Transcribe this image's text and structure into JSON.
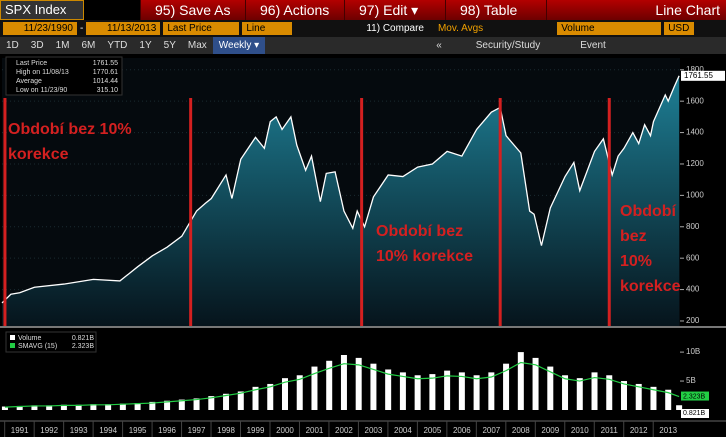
{
  "toolbar": {
    "ticker": "SPX Index",
    "buttons": [
      "95) Save As",
      "96) Actions ▾",
      "97) Edit ▾",
      "98) Table"
    ],
    "view": "Line Chart",
    "start": "11/23/1990",
    "dash": "-",
    "end": "11/13/2013",
    "field": "Last Price",
    "style": "Line",
    "compare": "11) Compare",
    "mavgs": "Mov. Avgs",
    "lower": "Volume",
    "currency": "USD",
    "periods": [
      "1D",
      "3D",
      "1M",
      "6M",
      "YTD",
      "1Y",
      "5Y",
      "Max"
    ],
    "freq": "Weekly ▾",
    "collapse": "«",
    "study": "Security/Study",
    "event": "Event"
  },
  "chart_data": [
    {
      "type": "line",
      "legend": [
        {
          "label": "Last Price",
          "value": "1761.55"
        },
        {
          "label": "High on 11/08/13",
          "value": "1770.61"
        },
        {
          "label": "Average",
          "value": "1014.44"
        },
        {
          "label": "Low on 11/23/90",
          "value": "315.10"
        }
      ],
      "last_label": "1761.55",
      "x": [
        1990.9,
        1991.2,
        1991.5,
        1992,
        1993,
        1994,
        1994.9,
        1995.5,
        1996,
        1996.5,
        1997,
        1997.5,
        1997.8,
        1998,
        1998.5,
        1998.7,
        1999,
        1999.5,
        1999.8,
        2000,
        2000.2,
        2000.4,
        2000.7,
        2000.9,
        2001.2,
        2001.4,
        2001.7,
        2001.9,
        2002.2,
        2002.5,
        2002.8,
        2002.95,
        2003.2,
        2003.5,
        2004,
        2004.5,
        2005,
        2005.5,
        2006,
        2006.5,
        2007,
        2007.5,
        2007.8,
        2008,
        2008.5,
        2008.8,
        2008.95,
        2009.2,
        2009.5,
        2010,
        2010.3,
        2010.5,
        2011,
        2011.3,
        2011.6,
        2011.8,
        2012,
        2012.3,
        2012.5,
        2012.7,
        2012.9,
        2013,
        2013.4,
        2013.5,
        2013.7,
        2013.87
      ],
      "series": [
        {
          "name": "Last Price",
          "color": "#ffffff",
          "values": [
            315,
            370,
            380,
            415,
            435,
            465,
            455,
            545,
            615,
            670,
            740,
            900,
            950,
            980,
            1130,
            980,
            1230,
            1370,
            1300,
            1470,
            1500,
            1420,
            1500,
            1320,
            1160,
            1250,
            960,
            1140,
            1150,
            900,
            790,
            900,
            800,
            990,
            1130,
            1120,
            1180,
            1200,
            1280,
            1250,
            1420,
            1530,
            1560,
            1380,
            1270,
            900,
            880,
            680,
            920,
            1120,
            1210,
            1030,
            1280,
            1360,
            1130,
            1250,
            1300,
            1400,
            1330,
            1450,
            1380,
            1470,
            1640,
            1600,
            1690,
            1761.55
          ]
        }
      ],
      "xlim": [
        1990.9,
        2013.9
      ],
      "ylim": [
        168,
        1875
      ],
      "yticks": [
        200,
        400,
        600,
        800,
        1000,
        1200,
        1400,
        1600,
        1800
      ],
      "markers": {
        "color": "#d42020",
        "x": [
          1991.0,
          1997.3,
          2003.1,
          2007.8,
          2011.5
        ]
      },
      "annotations": [
        {
          "lines": [
            "Období bez 10%",
            "korekce"
          ]
        },
        {
          "lines": [
            "Období bez",
            "10% korekce"
          ]
        },
        {
          "lines": [
            "Období",
            "bez",
            "10%",
            "korekce"
          ]
        }
      ]
    },
    {
      "type": "bar",
      "legend": [
        {
          "label": "Volume",
          "value": "0.821B"
        },
        {
          "label": "SMAVG (15)",
          "value": "2.323B"
        }
      ],
      "end_labels": [
        "2.323B",
        "0.821B"
      ],
      "x": [
        1991.0,
        1991.5,
        1992.0,
        1992.5,
        1993.0,
        1993.5,
        1994.0,
        1994.5,
        1995.0,
        1995.5,
        1996.0,
        1996.5,
        1997.0,
        1997.5,
        1998.0,
        1998.5,
        1999.0,
        1999.5,
        2000.0,
        2000.5,
        2001.0,
        2001.5,
        2002.0,
        2002.5,
        2003.0,
        2003.5,
        2004.0,
        2004.5,
        2005.0,
        2005.5,
        2006.0,
        2006.5,
        2007.0,
        2007.5,
        2008.0,
        2008.5,
        2009.0,
        2009.5,
        2010.0,
        2010.5,
        2011.0,
        2011.5,
        2012.0,
        2012.5,
        2013.0,
        2013.5,
        2013.87
      ],
      "series": [
        {
          "name": "Volume",
          "color": "#ffffff",
          "values": [
            0.6,
            0.7,
            0.8,
            0.8,
            0.9,
            0.9,
            1.0,
            1.0,
            1.1,
            1.2,
            1.4,
            1.6,
            1.8,
            2.0,
            2.4,
            2.8,
            3.2,
            4.0,
            4.5,
            5.5,
            6.0,
            7.5,
            8.5,
            9.5,
            9.0,
            8.0,
            7.0,
            6.5,
            6.0,
            6.2,
            6.8,
            6.5,
            6.0,
            6.5,
            8.0,
            10.0,
            9.0,
            7.5,
            6.0,
            5.5,
            6.5,
            6.0,
            5.0,
            4.5,
            4.0,
            3.5,
            0.821
          ]
        },
        {
          "name": "SMAVG (15)",
          "color": "#22cc44",
          "values": [
            0.5,
            0.6,
            0.7,
            0.7,
            0.8,
            0.8,
            0.9,
            0.9,
            1.0,
            1.1,
            1.2,
            1.4,
            1.6,
            1.8,
            2.1,
            2.5,
            2.9,
            3.5,
            4.0,
            4.8,
            5.3,
            6.3,
            7.2,
            8.0,
            7.8,
            7.0,
            6.2,
            5.8,
            5.4,
            5.5,
            5.9,
            5.8,
            5.4,
            5.7,
            6.8,
            8.2,
            7.8,
            6.6,
            5.4,
            5.0,
            5.6,
            5.3,
            4.5,
            4.0,
            3.5,
            3.0,
            2.323
          ]
        }
      ],
      "xlim": [
        1990.9,
        2013.9
      ],
      "ylim": [
        0,
        13.3
      ],
      "yticks": [
        {
          "value": 5,
          "label": "5B"
        },
        {
          "value": 10,
          "label": "10B"
        }
      ],
      "xticks": [
        {
          "value": 1991.5,
          "label": "1991"
        },
        {
          "value": 1992.5,
          "label": "1992"
        },
        {
          "value": 1993.5,
          "label": "1993"
        },
        {
          "value": 1994.5,
          "label": "1994"
        },
        {
          "value": 1995.5,
          "label": "1995"
        },
        {
          "value": 1996.5,
          "label": "1996"
        },
        {
          "value": 1997.5,
          "label": "1997"
        },
        {
          "value": 1998.5,
          "label": "1998"
        },
        {
          "value": 1999.5,
          "label": "1999"
        },
        {
          "value": 2000.5,
          "label": "2000"
        },
        {
          "value": 2001.5,
          "label": "2001"
        },
        {
          "value": 2002.5,
          "label": "2002"
        },
        {
          "value": 2003.5,
          "label": "2003"
        },
        {
          "value": 2004.5,
          "label": "2004"
        },
        {
          "value": 2005.5,
          "label": "2005"
        },
        {
          "value": 2006.5,
          "label": "2006"
        },
        {
          "value": 2007.5,
          "label": "2007"
        },
        {
          "value": 2008.5,
          "label": "2008"
        },
        {
          "value": 2009.5,
          "label": "2009"
        },
        {
          "value": 2010.5,
          "label": "2010"
        },
        {
          "value": 2011.5,
          "label": "2011"
        },
        {
          "value": 2012.5,
          "label": "2012"
        },
        {
          "value": 2013.5,
          "label": "2013"
        }
      ]
    }
  ]
}
